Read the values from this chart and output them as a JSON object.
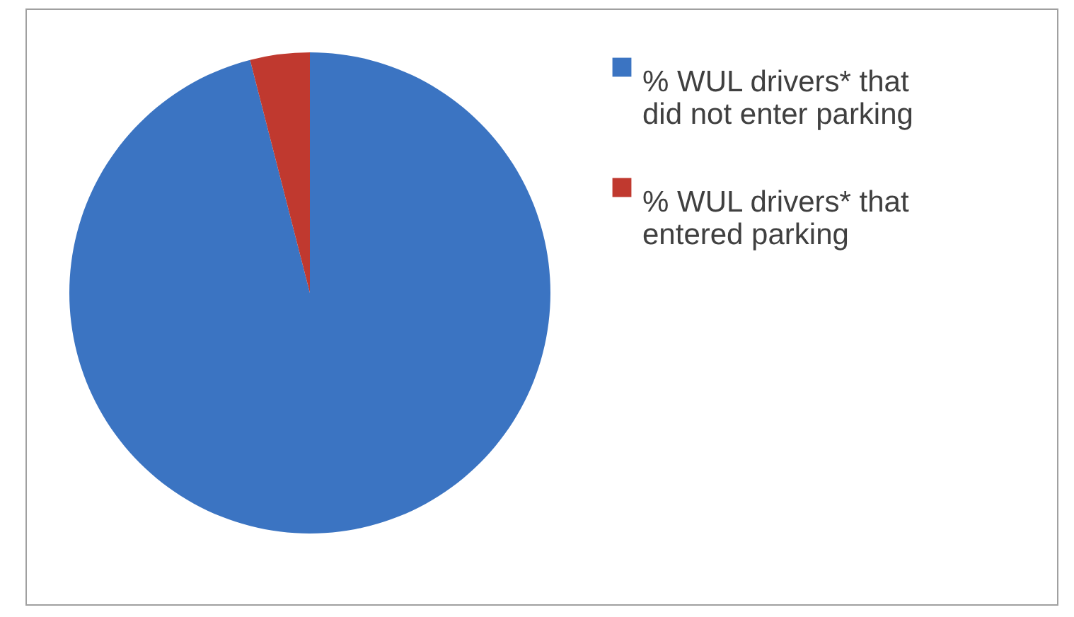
{
  "chart_data": {
    "type": "pie",
    "categories": [
      "% WUL drivers* that did not enter parking",
      "% WUL drivers* that entered parking"
    ],
    "values": [
      96,
      4
    ],
    "colors": [
      "#3b74c2",
      "#c0392f"
    ],
    "legend": "right"
  }
}
